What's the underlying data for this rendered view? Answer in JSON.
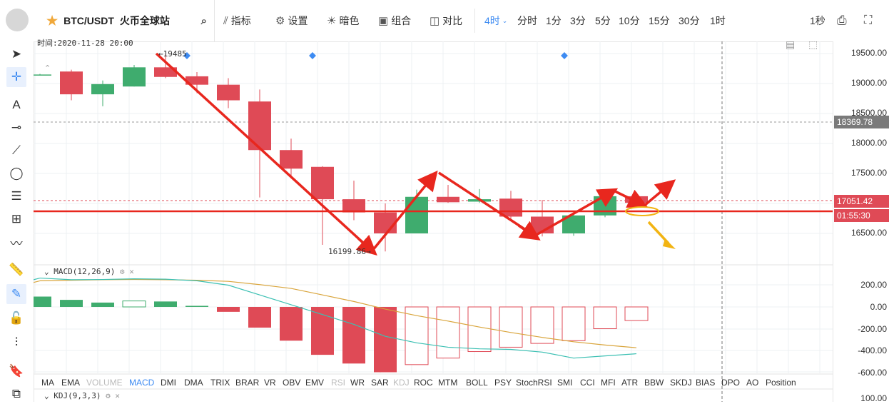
{
  "app": {
    "symbol": "BTC/USDT",
    "exchange": "火币全球站"
  },
  "toolbar": {
    "indicators": "指标",
    "settings": "设置",
    "dark": "暗色",
    "combo": "组合",
    "compare": "对比",
    "intervals": [
      "4时",
      "分时",
      "1分",
      "3分",
      "5分",
      "10分",
      "15分",
      "30分",
      "1时"
    ],
    "active_interval": "4时",
    "countdown": "1秒"
  },
  "chart": {
    "time_label": "时间:2020-11-28 20:00",
    "high_label": "19485",
    "low_label": "16199.86",
    "price_axis": [
      "19500.00",
      "19000.00",
      "18500.00",
      "18000.00",
      "17500.00",
      "17000.00",
      "16500.00"
    ],
    "tag_last": "18369.78",
    "tag_price": "17051.42",
    "tag_timer": "01:55:30",
    "macd_label": "MACD(12,26,9)",
    "macd_axis": [
      "200.00",
      "0.00",
      "-200.00",
      "-400.00",
      "-600.00"
    ],
    "kdj_label": "KDJ(9,3,3)",
    "kdj_axis_first": "100.00"
  },
  "candles": [
    {
      "o": 19150,
      "c": 19150,
      "h": 19160,
      "l": 19140
    },
    {
      "o": 19200,
      "c": 18820,
      "h": 19230,
      "l": 18720
    },
    {
      "o": 18820,
      "c": 18990,
      "h": 19050,
      "l": 18620
    },
    {
      "o": 18950,
      "c": 19270,
      "h": 19310,
      "l": 18950
    },
    {
      "o": 19270,
      "c": 19110,
      "h": 19485,
      "l": 19090
    },
    {
      "o": 19120,
      "c": 18980,
      "h": 19190,
      "l": 18840
    },
    {
      "o": 18980,
      "c": 18720,
      "h": 19090,
      "l": 18590
    },
    {
      "o": 18700,
      "c": 17890,
      "h": 18900,
      "l": 17100
    },
    {
      "o": 17890,
      "c": 17580,
      "h": 18080,
      "l": 17460
    },
    {
      "o": 17610,
      "c": 17070,
      "h": 17620,
      "l": 16310
    },
    {
      "o": 17070,
      "c": 16850,
      "h": 17380,
      "l": 16720
    },
    {
      "o": 16850,
      "c": 16500,
      "h": 17000,
      "l": 16199.86
    },
    {
      "o": 16500,
      "c": 17110,
      "h": 17230,
      "l": 16500
    },
    {
      "o": 17110,
      "c": 17020,
      "h": 17310,
      "l": 17010
    },
    {
      "o": 17030,
      "c": 17070,
      "h": 17240,
      "l": 17010
    },
    {
      "o": 17080,
      "c": 16780,
      "h": 17210,
      "l": 16740
    },
    {
      "o": 16780,
      "c": 16500,
      "h": 17060,
      "l": 16450
    },
    {
      "o": 16500,
      "c": 16800,
      "h": 16830,
      "l": 16460
    },
    {
      "o": 16800,
      "c": 17120,
      "h": 17150,
      "l": 16770
    },
    {
      "o": 17120,
      "c": 17010,
      "h": 17190,
      "l": 16980
    }
  ],
  "macd_hist": [
    {
      "v": 95,
      "f": true
    },
    {
      "v": 65,
      "f": true
    },
    {
      "v": 40,
      "f": true
    },
    {
      "v": 55,
      "f": false
    },
    {
      "v": 50,
      "f": true
    },
    {
      "v": 10,
      "f": true
    },
    {
      "v": -45,
      "f": true
    },
    {
      "v": -190,
      "f": true
    },
    {
      "v": -310,
      "f": true
    },
    {
      "v": -440,
      "f": true
    },
    {
      "v": -520,
      "f": true
    },
    {
      "v": -600,
      "f": true
    },
    {
      "v": -530,
      "f": false
    },
    {
      "v": -470,
      "f": false
    },
    {
      "v": -410,
      "f": false
    },
    {
      "v": -370,
      "f": false
    },
    {
      "v": -335,
      "f": false
    },
    {
      "v": -310,
      "f": false
    },
    {
      "v": -200,
      "f": false
    },
    {
      "v": -125,
      "f": false
    }
  ],
  "macd_dif": [
    265,
    250,
    252,
    258,
    255,
    240,
    200,
    110,
    20,
    -70,
    -160,
    -270,
    -330,
    -370,
    -385,
    -390,
    -415,
    -470,
    -450,
    -430
  ],
  "macd_dea": [
    240,
    245,
    250,
    252,
    250,
    245,
    235,
    205,
    170,
    110,
    50,
    -20,
    -80,
    -130,
    -185,
    -235,
    -280,
    -320,
    -350,
    -375
  ],
  "colors": {
    "up": "#3fac6e",
    "down": "#df4a56",
    "accent": "#3d8bf2",
    "arrow": "#e8271e",
    "dif": "#3cc0b3",
    "dea": "#d9a53c"
  },
  "indicator_tabs": [
    "MA",
    "EMA",
    "VOLUME",
    "MACD",
    "DMI",
    "DMA",
    "TRIX",
    "BRAR",
    "VR",
    "OBV",
    "EMV",
    "RSI",
    "WR",
    "SAR",
    "KDJ",
    "ROC",
    "MTM",
    "BOLL",
    "PSY",
    "StochRSI",
    "SMI",
    "CCI",
    "MFI",
    "ATR",
    "BBW",
    "SKDJ",
    "BIAS",
    "DPO",
    "AO",
    "Position"
  ],
  "indicator_tabs_active": "MACD"
}
